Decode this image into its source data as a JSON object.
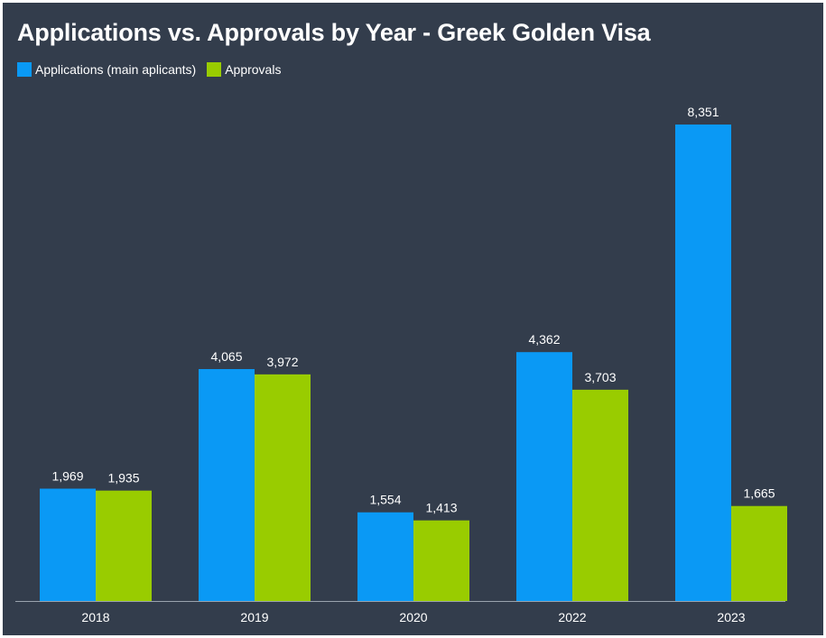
{
  "chart_data": {
    "type": "bar",
    "title": "Applications vs. Approvals by Year - Greek Golden Visa",
    "categories": [
      "2018",
      "2019",
      "2020",
      "2022",
      "2023"
    ],
    "series": [
      {
        "name": "Applications (main aplicants)",
        "color": "#0a99f5",
        "values": [
          1969,
          4065,
          1554,
          4362,
          8351
        ]
      },
      {
        "name": "Approvals",
        "color": "#99cc00",
        "values": [
          1935,
          3972,
          1413,
          3703,
          1665
        ]
      }
    ],
    "xlabel": "",
    "ylabel": "",
    "ylim": [
      0,
      8351
    ],
    "grid": false,
    "legend_position": "top-left",
    "value_format": "thousands-comma"
  }
}
